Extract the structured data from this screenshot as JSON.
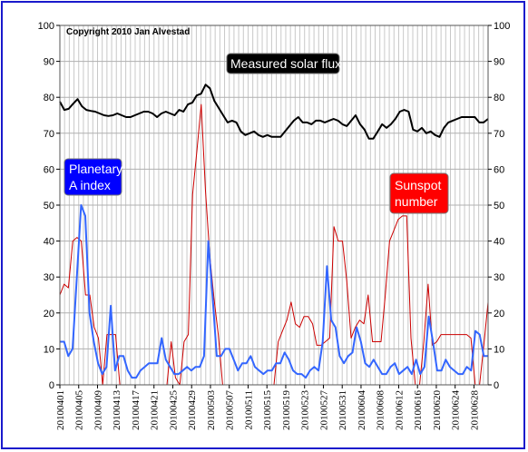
{
  "chart_data": {
    "type": "line",
    "copyright": "Copyright 2010 Jan Alvestad",
    "ylim": [
      0,
      100
    ],
    "yticks": [
      0,
      10,
      20,
      30,
      40,
      50,
      60,
      70,
      80,
      90,
      100
    ],
    "grid": true,
    "x_start": "20100401",
    "x_end": "20100630",
    "x_tick_labels": [
      "20100401",
      "20100405",
      "20100409",
      "20100413",
      "20100417",
      "20100421",
      "20100425",
      "20100429",
      "20100503",
      "20100507",
      "20100511",
      "20100515",
      "20100519",
      "20100523",
      "20100527",
      "20100531",
      "20100604",
      "20100608",
      "20100612",
      "20100616",
      "20100620",
      "20100624",
      "20100628"
    ],
    "series": [
      {
        "name": "Measured solar flux",
        "color": "#000000",
        "label_bg": "#000000",
        "values": [
          78.8,
          76.5,
          76.8,
          78.2,
          79.5,
          77.5,
          76.5,
          76.2,
          76.0,
          75.5,
          75.0,
          74.8,
          75.0,
          75.5,
          75.0,
          74.5,
          74.5,
          75.0,
          75.5,
          76.0,
          76.0,
          75.5,
          74.5,
          75.5,
          76.0,
          75.5,
          75.0,
          76.5,
          76.0,
          78.0,
          78.5,
          80.5,
          81.0,
          83.5,
          82.5,
          79.0,
          77.0,
          75.0,
          73.0,
          73.5,
          73.0,
          70.5,
          69.5,
          70.0,
          70.5,
          69.5,
          69.0,
          69.5,
          69.0,
          69.0,
          69.0,
          70.5,
          72.0,
          73.5,
          74.5,
          73.0,
          73.0,
          72.5,
          73.5,
          73.5,
          73.0,
          73.5,
          74.0,
          73.5,
          72.5,
          72.0,
          73.5,
          75.0,
          72.5,
          71.0,
          68.5,
          68.5,
          70.5,
          72.5,
          71.5,
          72.5,
          74.0,
          76.0,
          76.5,
          76.0,
          71.0,
          70.5,
          71.5,
          70.0,
          70.5,
          69.5,
          69.0,
          71.5,
          73.0,
          73.5,
          74.0,
          74.5,
          74.5,
          74.5,
          74.5,
          73.0,
          73.0,
          74.0
        ]
      },
      {
        "name": "Planetary A index",
        "color": "#3366ff",
        "label_bg": "#0000ff",
        "values": [
          12,
          12,
          8,
          10,
          30,
          50,
          47,
          20,
          12,
          6,
          3,
          5,
          22,
          4,
          8,
          8,
          4,
          2,
          2,
          4,
          5,
          6,
          6,
          6,
          13,
          7,
          5,
          3,
          3,
          4,
          5,
          4,
          5,
          5,
          8,
          40,
          25,
          8,
          8,
          10,
          10,
          7,
          4,
          6,
          6,
          8,
          5,
          4,
          3,
          4,
          4,
          6,
          6,
          9,
          7,
          4,
          3,
          3,
          2,
          4,
          5,
          4,
          12,
          33,
          18,
          16,
          8,
          6,
          8,
          9,
          16,
          12,
          6,
          5,
          7,
          5,
          3,
          3,
          5,
          6,
          3,
          4,
          5,
          3,
          7,
          3,
          5,
          19,
          12,
          4,
          4,
          7,
          5,
          4,
          3,
          3,
          5,
          4,
          15,
          14,
          8,
          8
        ]
      },
      {
        "name": "Sunspot number",
        "color": "#cc0000",
        "label_bg": "#ff0000",
        "values": [
          25,
          28,
          27,
          40,
          41,
          40,
          25,
          25,
          16,
          13,
          0,
          14,
          14,
          14,
          0,
          0,
          0,
          0,
          0,
          0,
          0,
          0,
          0,
          0,
          0,
          0,
          12,
          2,
          0,
          12,
          14,
          53,
          65,
          78,
          54,
          36,
          24,
          14,
          0,
          0,
          0,
          0,
          0,
          0,
          0,
          0,
          0,
          0,
          0,
          0,
          0,
          12,
          15,
          18,
          23,
          17,
          16,
          19,
          19,
          17,
          11,
          11,
          12,
          13,
          44,
          40,
          40,
          29,
          13,
          16,
          18,
          17,
          25,
          12,
          12,
          12,
          25,
          40,
          43,
          46,
          47,
          47,
          13,
          0,
          0,
          12,
          28,
          11,
          12,
          14,
          14,
          14,
          14,
          14,
          14,
          14,
          13,
          0,
          0,
          11,
          23
        ]
      }
    ],
    "labels": {
      "flux": "Measured solar flux",
      "aindex_line1": "Planetary",
      "aindex_line2": "A index",
      "sunspot_line1": "Sunspot",
      "sunspot_line2": "number"
    }
  }
}
